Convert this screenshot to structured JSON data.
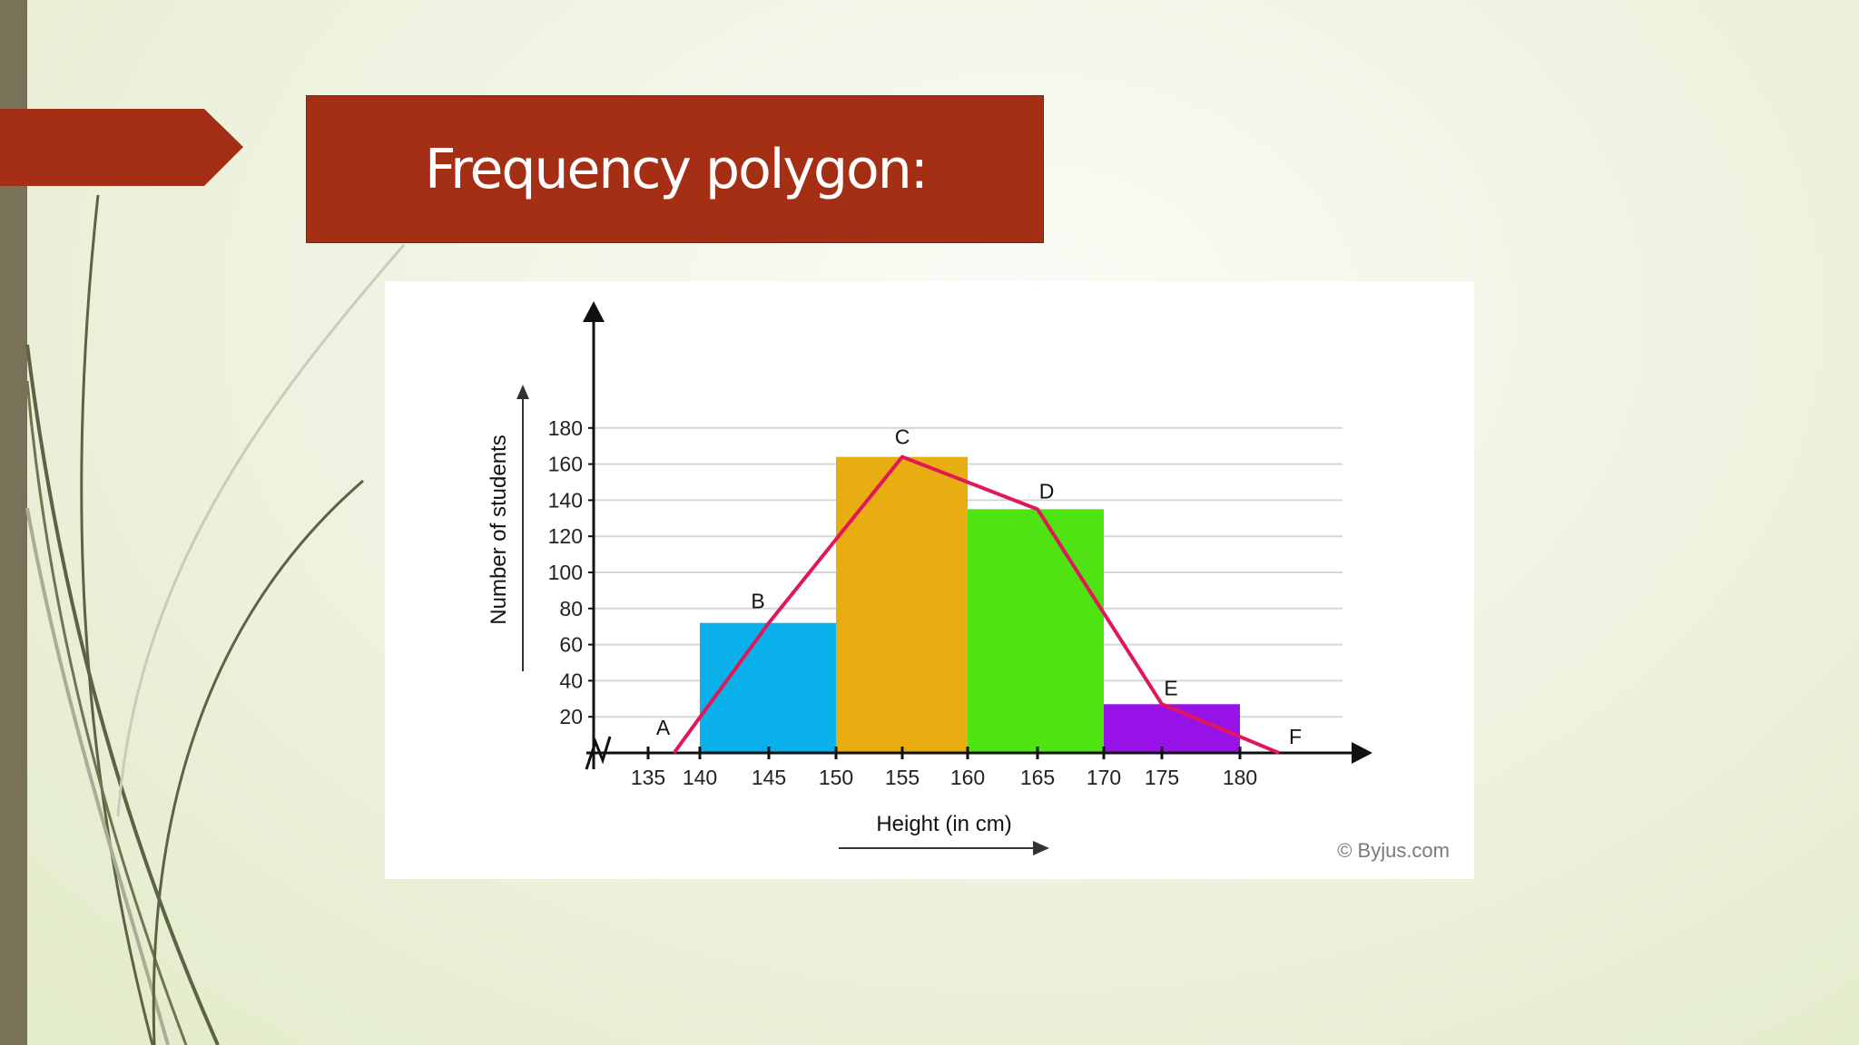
{
  "slide": {
    "title": "Frequency polygon:",
    "colors": {
      "title_bg": "#a52f15",
      "title_text": "#ffffff",
      "left_strip": "#7a7258",
      "background": "#eef2dc"
    }
  },
  "chart_data": {
    "type": "bar",
    "title": "",
    "xlabel": "Height (in cm)",
    "ylabel": "Number of students",
    "credit": "© Byjus.com",
    "xlim": [
      135,
      180
    ],
    "ylim": [
      0,
      180
    ],
    "x_ticks": [
      135,
      140,
      145,
      150,
      155,
      160,
      165,
      170,
      175,
      180
    ],
    "y_ticks": [
      20,
      40,
      60,
      80,
      100,
      120,
      140,
      160,
      180
    ],
    "grid": true,
    "bars": [
      {
        "from": 140,
        "to": 150,
        "value": 72,
        "color": "#0ab0ea"
      },
      {
        "from": 150,
        "to": 160,
        "value": 164,
        "color": "#e8ad10"
      },
      {
        "from": 160,
        "to": 170,
        "value": 135,
        "color": "#4fe314"
      },
      {
        "from": 170,
        "to": 180,
        "value": 27,
        "color": "#9712e6"
      }
    ],
    "polygon": {
      "color": "#e2175a",
      "points": [
        {
          "label": "A",
          "x": 137.5,
          "y": 0
        },
        {
          "label": "B",
          "x": 145,
          "y": 72
        },
        {
          "label": "C",
          "x": 155,
          "y": 164
        },
        {
          "label": "D",
          "x": 165,
          "y": 135
        },
        {
          "label": "E",
          "x": 175,
          "y": 27
        },
        {
          "label": "F",
          "x": 182.5,
          "y": 0
        }
      ]
    }
  }
}
